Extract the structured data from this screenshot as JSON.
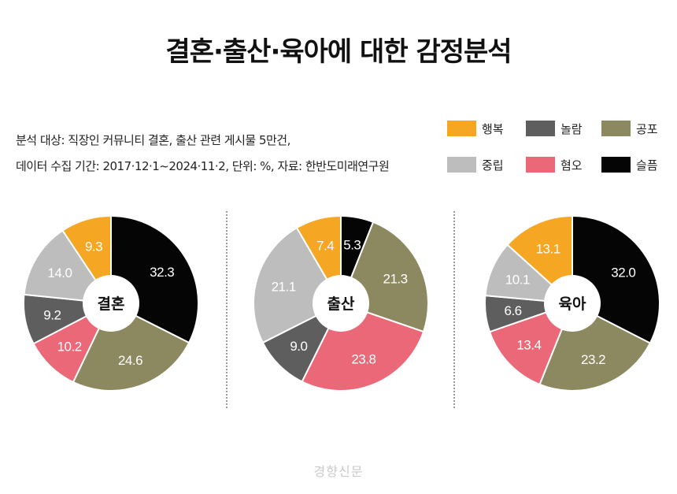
{
  "title": "결혼·출산·육아에 대한 감정분석",
  "note": {
    "line1": "분석 대상: 직장인 커뮤니티 결혼, 출산 관련 게시물 5만건,",
    "line2": "데이터 수집 기간: 2017·12·1~2024·11·2, 단위: %, 자료: 한반도미래연구원"
  },
  "legend": [
    {
      "name": "행복",
      "color": "#F5A623"
    },
    {
      "name": "놀람",
      "color": "#5E5E5E"
    },
    {
      "name": "공포",
      "color": "#8C8960"
    },
    {
      "name": "중립",
      "color": "#BDBDBD"
    },
    {
      "name": "혐오",
      "color": "#EA6877"
    },
    {
      "name": "슬픔",
      "color": "#050505"
    }
  ],
  "chart_data": [
    {
      "type": "pie",
      "center_label": "결혼",
      "slices": [
        {
          "category": "슬픔",
          "value": 32.3,
          "label": "32.3",
          "color": "#050505"
        },
        {
          "category": "공포",
          "value": 24.6,
          "label": "24.6",
          "color": "#8C8960"
        },
        {
          "category": "혐오",
          "value": 10.2,
          "label": "10.2",
          "color": "#EA6877"
        },
        {
          "category": "놀람",
          "value": 9.2,
          "label": "9.2",
          "color": "#5E5E5E"
        },
        {
          "category": "중립",
          "value": 14.0,
          "label": "14.0",
          "color": "#BDBDBD"
        },
        {
          "category": "행복",
          "value": 9.3,
          "label": "9.3",
          "color": "#F5A623"
        }
      ]
    },
    {
      "type": "pie",
      "center_label": "출산",
      "slices": [
        {
          "category": "슬픔",
          "value": 5.3,
          "label": "5.3",
          "color": "#050505"
        },
        {
          "category": "공포",
          "value": 21.3,
          "label": "21.3",
          "color": "#8C8960"
        },
        {
          "category": "혐오",
          "value": 23.8,
          "label": "23.8",
          "color": "#EA6877"
        },
        {
          "category": "놀람",
          "value": 9.0,
          "label": "9.0",
          "color": "#5E5E5E"
        },
        {
          "category": "중립",
          "value": 21.1,
          "label": "21.1",
          "color": "#BDBDBD"
        },
        {
          "category": "행복",
          "value": 7.4,
          "label": "7.4",
          "color": "#F5A623"
        }
      ]
    },
    {
      "type": "pie",
      "center_label": "육아",
      "slices": [
        {
          "category": "슬픔",
          "value": 32.0,
          "label": "32.0",
          "color": "#050505"
        },
        {
          "category": "공포",
          "value": 23.2,
          "label": "23.2",
          "color": "#8C8960"
        },
        {
          "category": "혐오",
          "value": 13.4,
          "label": "13.4",
          "color": "#EA6877"
        },
        {
          "category": "놀람",
          "value": 6.6,
          "label": "6.6",
          "color": "#5E5E5E"
        },
        {
          "category": "중립",
          "value": 10.1,
          "label": "10.1",
          "color": "#BDBDBD"
        },
        {
          "category": "행복",
          "value": 13.1,
          "label": "13.1",
          "color": "#F5A623"
        }
      ]
    }
  ],
  "watermark": "경향신문"
}
